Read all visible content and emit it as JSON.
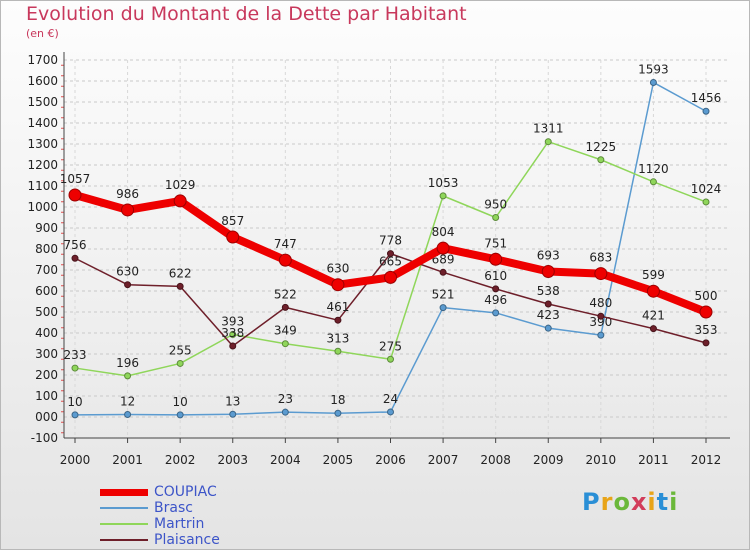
{
  "title": "Evolution du Montant de la Dette par Habitant",
  "subtitle": "(en €)",
  "chart_data": {
    "type": "line",
    "title": "Evolution du Montant de la Dette par Habitant",
    "subtitle": "(en €)",
    "x": [
      "2000",
      "2001",
      "2002",
      "2003",
      "2004",
      "2005",
      "2006",
      "2007",
      "2008",
      "2009",
      "2010",
      "2011",
      "2012"
    ],
    "ylim": [
      -100,
      1700
    ],
    "yticks": [
      -100,
      0,
      100,
      200,
      300,
      400,
      500,
      600,
      700,
      800,
      900,
      1000,
      1100,
      1200,
      1300,
      1400,
      1500,
      1600,
      1700
    ],
    "ytick_labels": [
      "-100",
      "000",
      "100",
      "200",
      "300",
      "400",
      "500",
      "600",
      "700",
      "800",
      "900",
      "1000",
      "1100",
      "1200",
      "1300",
      "1400",
      "1500",
      "1600",
      "1700"
    ],
    "grid": "horizontal dashed",
    "legend_position": "bottom-left",
    "series": [
      {
        "name": "Brasc",
        "color": "#5b9bd0",
        "values": [
          10,
          12,
          10,
          13,
          23,
          18,
          24,
          521,
          496,
          423,
          390,
          1593,
          1456
        ]
      },
      {
        "name": "Martrin",
        "color": "#8fd65a",
        "values": [
          233,
          196,
          255,
          393,
          349,
          313,
          275,
          1053,
          950,
          1311,
          1225,
          1120,
          1024
        ]
      },
      {
        "name": "Plaisance",
        "color": "#6e1f2a",
        "values": [
          756,
          630,
          622,
          338,
          522,
          461,
          778,
          689,
          610,
          538,
          480,
          421,
          353
        ]
      },
      {
        "name": "COUPIAC",
        "color": "#ee0000",
        "values": [
          1057,
          986,
          1029,
          857,
          747,
          630,
          665,
          804,
          751,
          693,
          683,
          599,
          500
        ]
      }
    ]
  },
  "legend": {
    "items": [
      {
        "name": "COUPIAC",
        "color": "#ee0000"
      },
      {
        "name": "Brasc",
        "color": "#5b9bd0"
      },
      {
        "name": "Martrin",
        "color": "#8fd65a"
      },
      {
        "name": "Plaisance",
        "color": "#6e1f2a"
      }
    ]
  },
  "logo": {
    "text": "Proxiti",
    "letter_colors": [
      "#2a8fd6",
      "#e8a418",
      "#6bb83a",
      "#d23c5a",
      "#e8a418",
      "#2a8fd6",
      "#6bb83a"
    ]
  }
}
